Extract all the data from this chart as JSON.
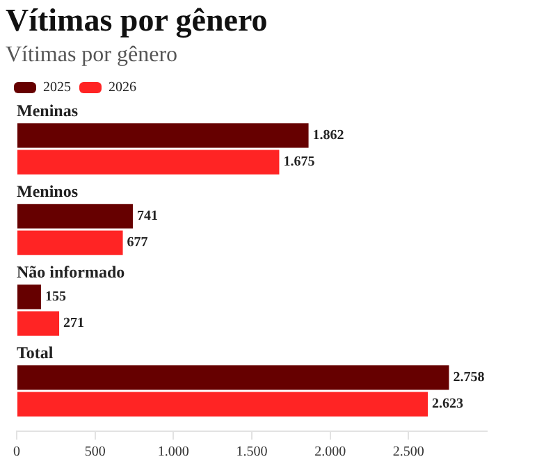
{
  "chart_data": {
    "type": "bar",
    "orientation": "horizontal",
    "title": "Vítimas por gênero",
    "subtitle": "Vítimas por gênero",
    "categories": [
      "Meninas",
      "Meninos",
      "Não informado",
      "Total"
    ],
    "series": [
      {
        "name": "2025",
        "color": "#660000",
        "values": [
          1862,
          741,
          155,
          2758
        ],
        "value_labels": [
          "1.862",
          "741",
          "155",
          "2.758"
        ]
      },
      {
        "name": "2026",
        "color": "#ff2424",
        "values": [
          1675,
          677,
          271,
          2623
        ],
        "value_labels": [
          "1.675",
          "677",
          "271",
          "2.623"
        ]
      }
    ],
    "xlim": [
      0,
      3000
    ],
    "xticks": [
      0,
      500,
      {
        "value": 1000,
        "label": "1.000"
      },
      {
        "value": 1500,
        "label": "1.500"
      },
      {
        "value": 2000,
        "label": "2.000"
      },
      {
        "value": 2500,
        "label": "2.500"
      }
    ],
    "grid": false,
    "legend": "top left"
  }
}
